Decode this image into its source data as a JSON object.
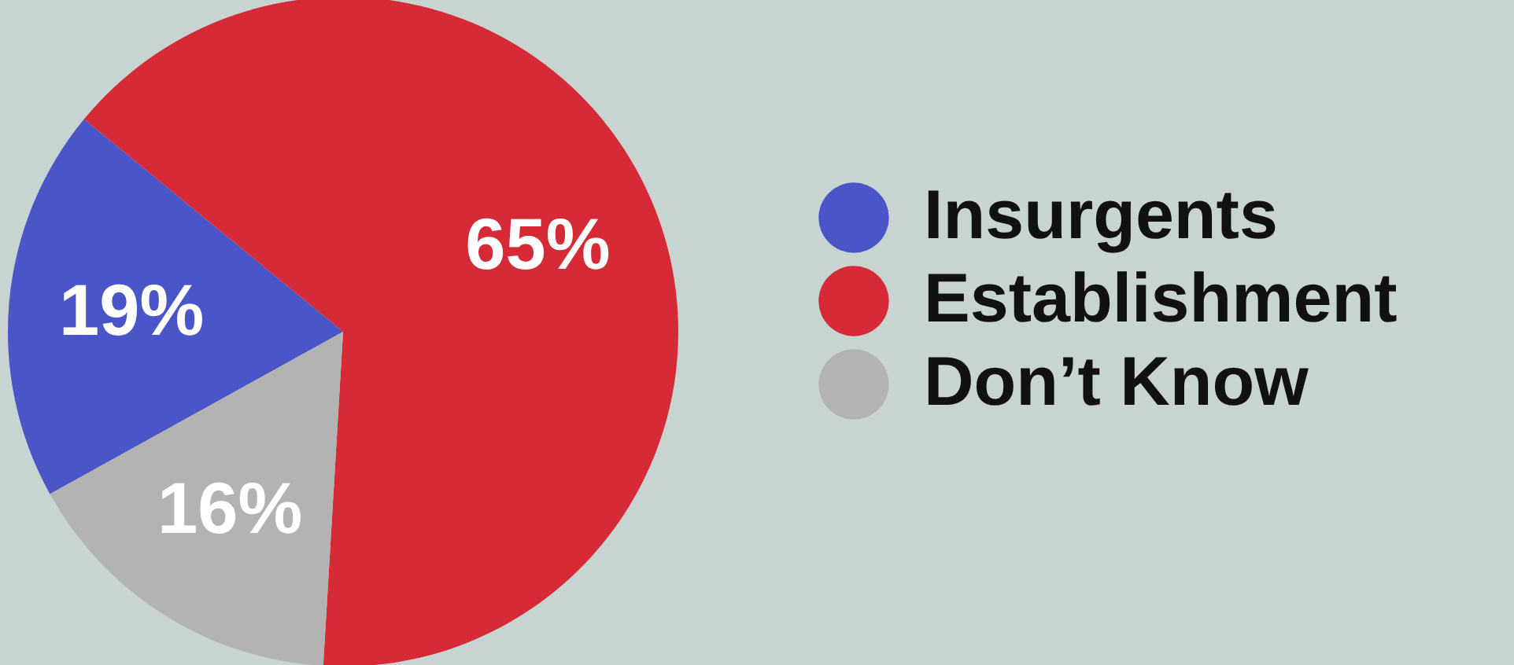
{
  "chart_data": {
    "type": "pie",
    "categories": [
      "Insurgents",
      "Establishment",
      "Don’t Know"
    ],
    "values": [
      19,
      65,
      16
    ],
    "colors": [
      "#4a55c8",
      "#d62b36",
      "#b3b3b3"
    ],
    "value_labels": [
      "19%",
      "65%",
      "16%"
    ],
    "legend": "right"
  }
}
